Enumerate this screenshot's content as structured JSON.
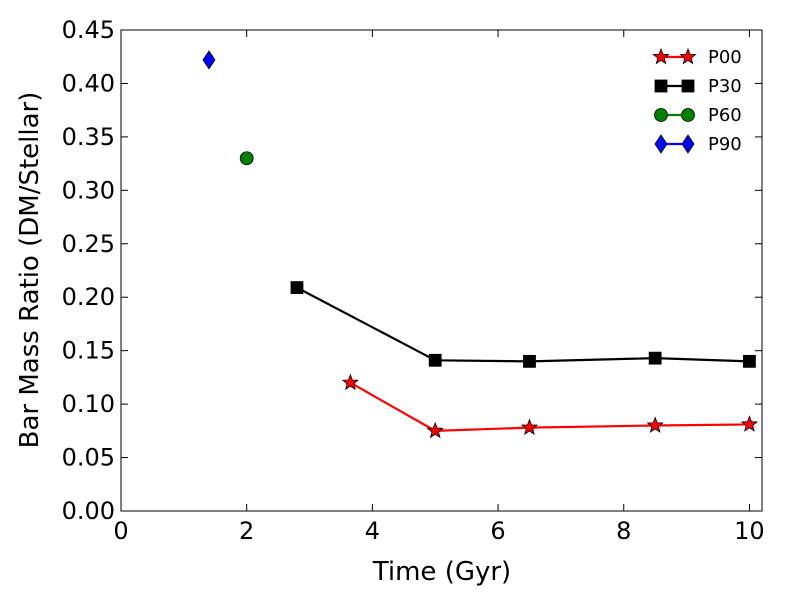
{
  "chart_data": {
    "type": "line",
    "title": "",
    "xlabel": "Time (Gyr)",
    "ylabel": "Bar Mass Ratio (DM/Stellar)",
    "xlim": [
      0,
      10.2
    ],
    "ylim": [
      0.0,
      0.45
    ],
    "xticks": [
      0,
      2,
      4,
      6,
      8,
      10
    ],
    "xtick_labels": [
      "0",
      "2",
      "4",
      "6",
      "8",
      "10"
    ],
    "yticks": [
      0.0,
      0.05,
      0.1,
      0.15,
      0.2,
      0.25,
      0.3,
      0.35,
      0.4,
      0.45
    ],
    "ytick_labels": [
      "0.00",
      "0.05",
      "0.10",
      "0.15",
      "0.20",
      "0.25",
      "0.30",
      "0.35",
      "0.40",
      "0.45"
    ],
    "grid": false,
    "legend_position": "top-right",
    "series": [
      {
        "name": "P00",
        "color": "#ff0000",
        "marker": "star",
        "x": [
          3.65,
          5.0,
          6.5,
          8.5,
          10.0
        ],
        "y": [
          0.12,
          0.075,
          0.078,
          0.08,
          0.081
        ]
      },
      {
        "name": "P30",
        "color": "#000000",
        "marker": "square",
        "x": [
          2.8,
          5.0,
          6.5,
          8.5,
          10.0
        ],
        "y": [
          0.209,
          0.141,
          0.14,
          0.143,
          0.14
        ]
      },
      {
        "name": "P60",
        "color": "#008000",
        "marker": "circle",
        "x": [
          2.0
        ],
        "y": [
          0.33
        ]
      },
      {
        "name": "P90",
        "color": "#0000ff",
        "marker": "diamond",
        "x": [
          1.4
        ],
        "y": [
          0.422
        ]
      }
    ]
  }
}
